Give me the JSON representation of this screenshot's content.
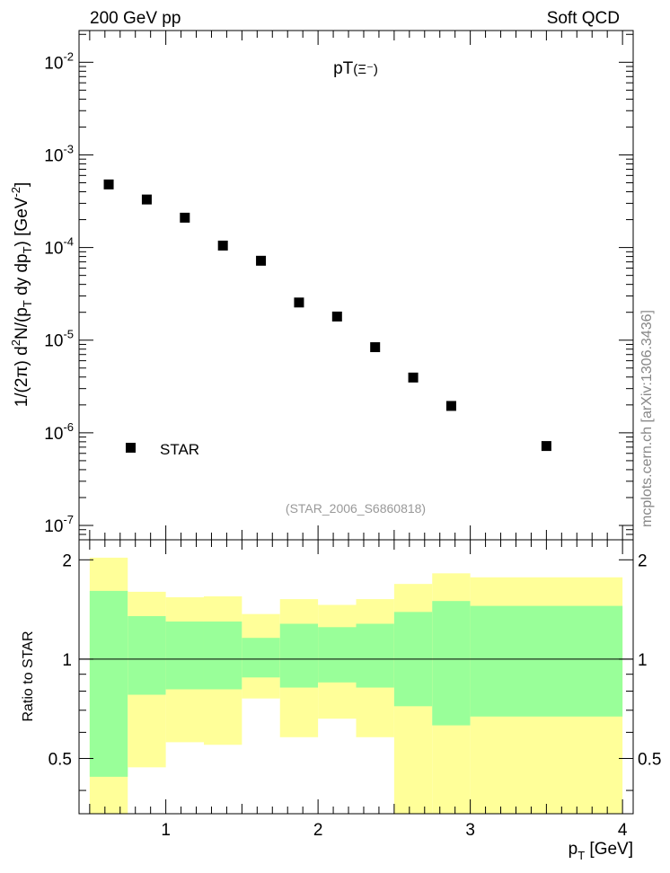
{
  "header": {
    "left_label": "200 GeV pp",
    "right_label": "Soft QCD"
  },
  "side_label": "mcplots.cern.ch [arXiv:1306.3436]",
  "chart_data": [
    {
      "type": "scatter",
      "y_scale": "log",
      "title": "pT(Ξ⁻)",
      "title_main": "pT",
      "title_paren": "(Ξ⁻)",
      "ylabel": "1/(2π) d²N/(p_T dy dp_T) [GeV⁻²]",
      "ylabel_parts": {
        "a": "1/(2π) d",
        "sup1": "2",
        "b": "N/(p",
        "sub1": "T",
        "c": " dy dp",
        "sub2": "T",
        "d": ") [GeV",
        "sup2": "-2",
        "e": "]"
      },
      "xlim": [
        0.43,
        4.07
      ],
      "ylim": [
        7e-08,
        0.022
      ],
      "ytick_labels": [
        {
          "base": "10",
          "exp": "-7",
          "value": 1e-07
        },
        {
          "base": "10",
          "exp": "-6",
          "value": 1e-06
        },
        {
          "base": "10",
          "exp": "-5",
          "value": 1e-05
        },
        {
          "base": "10",
          "exp": "-4",
          "value": 0.0001
        },
        {
          "base": "10",
          "exp": "-3",
          "value": 0.001
        },
        {
          "base": "10",
          "exp": "-2",
          "value": 0.01
        }
      ],
      "legend": {
        "label": "STAR",
        "position": "bottom-left"
      },
      "watermark": "(STAR_2006_S6860818)",
      "series": [
        {
          "name": "STAR",
          "x": [
            0.625,
            0.875,
            1.125,
            1.375,
            1.625,
            1.875,
            2.125,
            2.375,
            2.625,
            2.875,
            3.5
          ],
          "y": [
            0.00048,
            0.00033,
            0.00021,
            0.000105,
            7.2e-05,
            2.55e-05,
            1.8e-05,
            8.4e-06,
            3.95e-06,
            1.95e-06,
            7.2e-07
          ]
        }
      ]
    },
    {
      "type": "area",
      "title": "",
      "xlabel": "p_T [GeV]",
      "xlabel_parts": {
        "main": "p",
        "sub": "T",
        "unit": " [GeV]"
      },
      "ylabel": "Ratio to STAR",
      "xlim": [
        0.43,
        4.07
      ],
      "ylim": [
        0.34,
        2.3
      ],
      "xtick_labels": [
        "1",
        "2",
        "3",
        "4"
      ],
      "ytick_labels": [
        "0.5",
        "1",
        "2"
      ],
      "reference_line": 1.0,
      "bands": [
        {
          "x_low": 0.5,
          "x_high": 0.75,
          "stat_low": 0.44,
          "stat_high": 1.61,
          "total_low": 0.34,
          "total_high": 2.03
        },
        {
          "x_low": 0.75,
          "x_high": 1.0,
          "stat_low": 0.78,
          "stat_high": 1.35,
          "total_low": 0.47,
          "total_high": 1.6
        },
        {
          "x_low": 1.0,
          "x_high": 1.25,
          "stat_low": 0.81,
          "stat_high": 1.3,
          "total_low": 0.56,
          "total_high": 1.54
        },
        {
          "x_low": 1.25,
          "x_high": 1.5,
          "stat_low": 0.81,
          "stat_high": 1.3,
          "total_low": 0.55,
          "total_high": 1.55
        },
        {
          "x_low": 1.5,
          "x_high": 1.75,
          "stat_low": 0.88,
          "stat_high": 1.16,
          "total_low": 0.76,
          "total_high": 1.37
        },
        {
          "x_low": 1.75,
          "x_high": 2.0,
          "stat_low": 0.82,
          "stat_high": 1.28,
          "total_low": 0.58,
          "total_high": 1.52
        },
        {
          "x_low": 2.0,
          "x_high": 2.25,
          "stat_low": 0.85,
          "stat_high": 1.25,
          "total_low": 0.66,
          "total_high": 1.46
        },
        {
          "x_low": 2.25,
          "x_high": 2.5,
          "stat_low": 0.82,
          "stat_high": 1.28,
          "total_low": 0.58,
          "total_high": 1.52
        },
        {
          "x_low": 2.5,
          "x_high": 2.75,
          "stat_low": 0.72,
          "stat_high": 1.39,
          "total_low": 0.34,
          "total_high": 1.69
        },
        {
          "x_low": 2.75,
          "x_high": 3.0,
          "stat_low": 0.63,
          "stat_high": 1.5,
          "total_low": 0.34,
          "total_high": 1.82
        },
        {
          "x_low": 3.0,
          "x_high": 4.0,
          "stat_low": 0.67,
          "stat_high": 1.45,
          "total_low": 0.34,
          "total_high": 1.77
        }
      ],
      "colors": {
        "stat_band": "#99ff99",
        "total_band": "#ffff99",
        "line": "#000000"
      }
    }
  ]
}
